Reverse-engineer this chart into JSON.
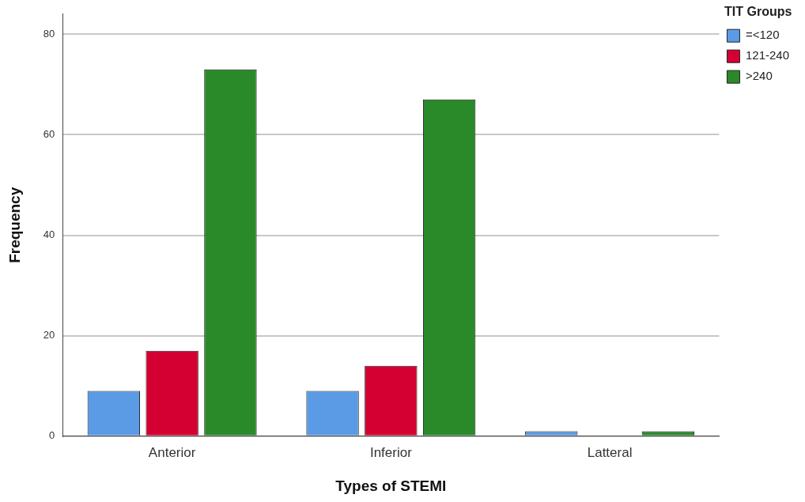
{
  "chart_data": {
    "type": "bar",
    "xlabel": "Types of STEMI",
    "ylabel": "Frequency",
    "legend_title": "TIT Groups",
    "categories": [
      "Anterior",
      "Inferior",
      "Latteral"
    ],
    "series": [
      {
        "name": "=<120",
        "color": "#5b9be6",
        "values": [
          9,
          9,
          1
        ]
      },
      {
        "name": "121-240",
        "color": "#d50032",
        "values": [
          17,
          14,
          0
        ]
      },
      {
        "name": ">240",
        "color": "#2a8a2a",
        "values": [
          73,
          67,
          1
        ]
      }
    ],
    "ylim": [
      0,
      84
    ],
    "yticks": [
      0,
      20,
      40,
      60,
      80
    ],
    "grid": "y",
    "legend": "top right"
  }
}
